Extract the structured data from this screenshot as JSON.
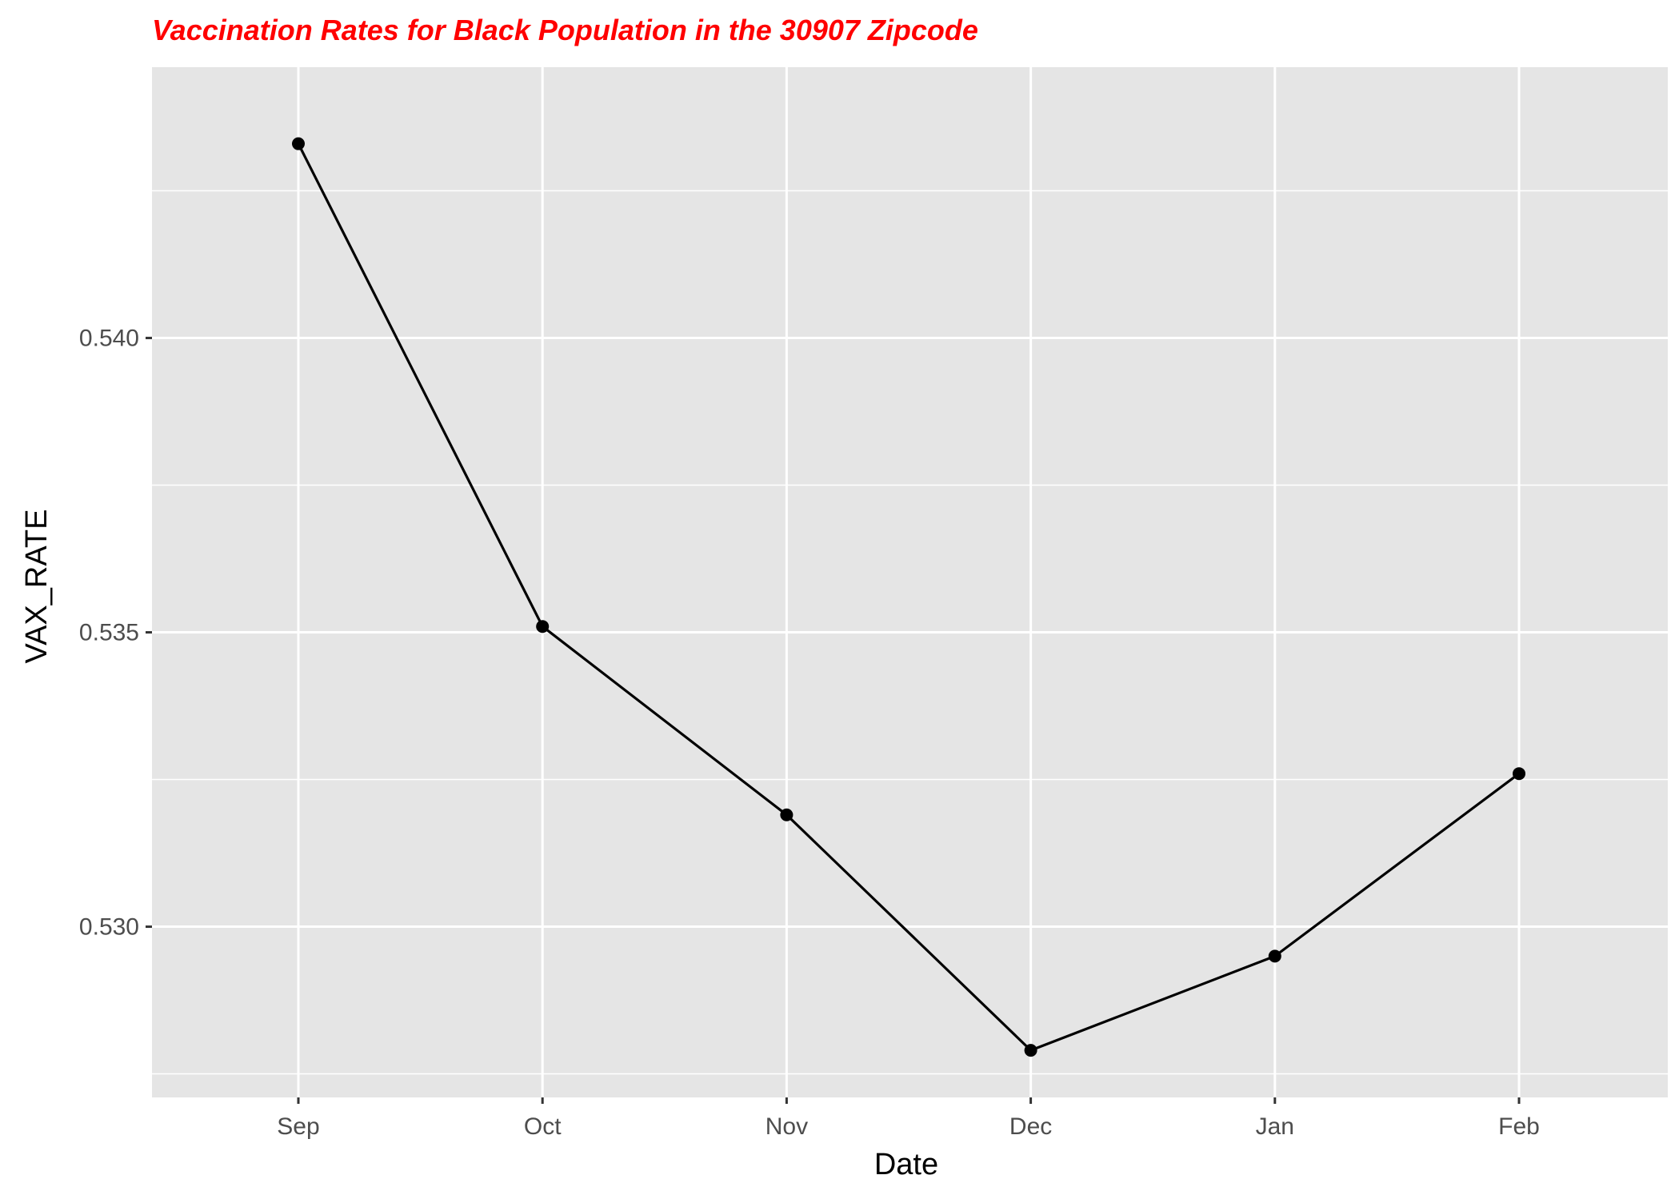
{
  "chart_data": {
    "type": "line",
    "title": "Vaccination Rates for Black Population in the 30907 Zipcode",
    "xlabel": "Date",
    "ylabel": "VAX_RATE",
    "categories": [
      "Sep",
      "Oct",
      "Nov",
      "Dec",
      "Jan",
      "Feb"
    ],
    "series": [
      {
        "values": [
          0.5433,
          0.5351,
          0.5319,
          0.5279,
          0.5295,
          0.5326
        ]
      }
    ],
    "ylim": [
      0.5271,
      0.5446
    ],
    "yticks": [
      0.53,
      0.535,
      0.54
    ],
    "ytick_labels": [
      "0.530",
      "0.535",
      "0.540"
    ],
    "grid": true,
    "legend": "none",
    "colors": {
      "title": "#ff0000",
      "panel_background": "#e5e5e5",
      "grid": "#ffffff",
      "line": "#000000",
      "point": "#000000"
    }
  }
}
